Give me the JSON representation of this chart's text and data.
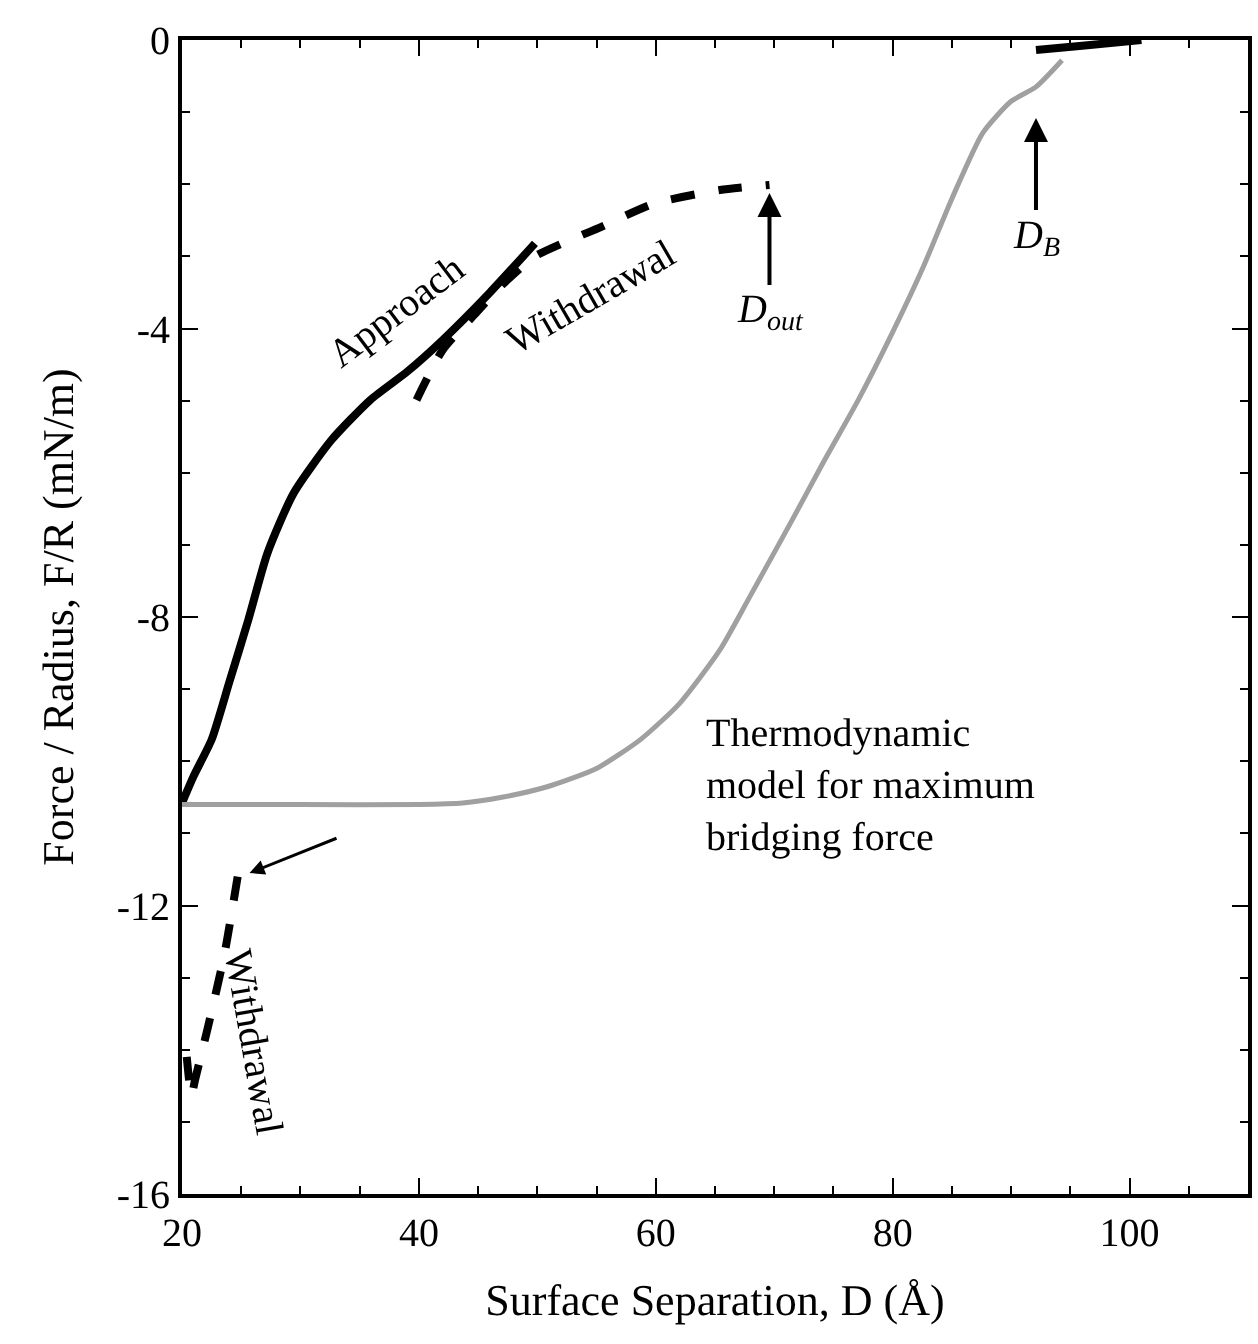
{
  "chart_data": {
    "type": "line",
    "xlabel": "Surface Separation, D (Å)",
    "ylabel": "Force / Radius, F/R (mN/m)",
    "xlim": [
      20,
      110
    ],
    "xticks": [
      20,
      40,
      60,
      80,
      100
    ],
    "ylim": [
      -16,
      0
    ],
    "yticks": [
      -16,
      -12,
      -8,
      -4,
      0
    ],
    "series": [
      {
        "name": "Approach",
        "color": "#000000",
        "line_style": "solid",
        "x": [
          20,
          21,
          22.5,
          24,
          25.6,
          27.2,
          29.4,
          32.6,
          35.9,
          39,
          42,
          46,
          49.8
        ],
        "values": [
          -10.58,
          -10.2,
          -9.7,
          -8.9,
          -8.04,
          -7.12,
          -6.29,
          -5.55,
          -4.99,
          -4.6,
          -4.16,
          -3.5,
          -2.82
        ]
      },
      {
        "name": "Withdrawal",
        "color": "#000000",
        "line_style": "dashed",
        "x": [
          39.8,
          42,
          44.8,
          47,
          49.8,
          55.4,
          59.8,
          65.4,
          69.6
        ],
        "values": [
          -4.99,
          -4.3,
          -3.79,
          -3.4,
          -3.0,
          -2.59,
          -2.27,
          -2.08,
          -2.01
        ]
      },
      {
        "name": "Withdrawal",
        "color": "#000000",
        "line_style": "dashed",
        "x": [
          24.7,
          23.6,
          22.2,
          21.1,
          20.8,
          20.4
        ],
        "values": [
          -11.6,
          -12.66,
          -13.68,
          -14.42,
          -14.64,
          -14.1
        ]
      },
      {
        "name": "Thermodynamic\nmodel for maximum\nbridging force",
        "color": "#a0a0a0",
        "line_style": "solid",
        "x": [
          20,
          30,
          40,
          43.7,
          47,
          50.9,
          55,
          58.7,
          62,
          65.4,
          68,
          71.5,
          74,
          77.1,
          80,
          82.6,
          85,
          87.6,
          90,
          92.1,
          94.3
        ],
        "values": [
          -10.6,
          -10.6,
          -10.6,
          -10.58,
          -10.5,
          -10.35,
          -10.1,
          -9.7,
          -9.2,
          -8.46,
          -7.7,
          -6.66,
          -5.9,
          -4.99,
          -4.05,
          -3.14,
          -2.2,
          -1.29,
          -0.85,
          -0.65,
          -0.28
        ]
      },
      {
        "color": "#000000",
        "line_style": "solid",
        "x": [
          92.1,
          96,
          101
        ],
        "values": [
          -0.14,
          -0.08,
          0
        ]
      }
    ],
    "annotations": [
      {
        "text": "D$_{out}$",
        "x": 69.6,
        "y": -2.01
      },
      "D$_{B}$"
    ]
  }
}
